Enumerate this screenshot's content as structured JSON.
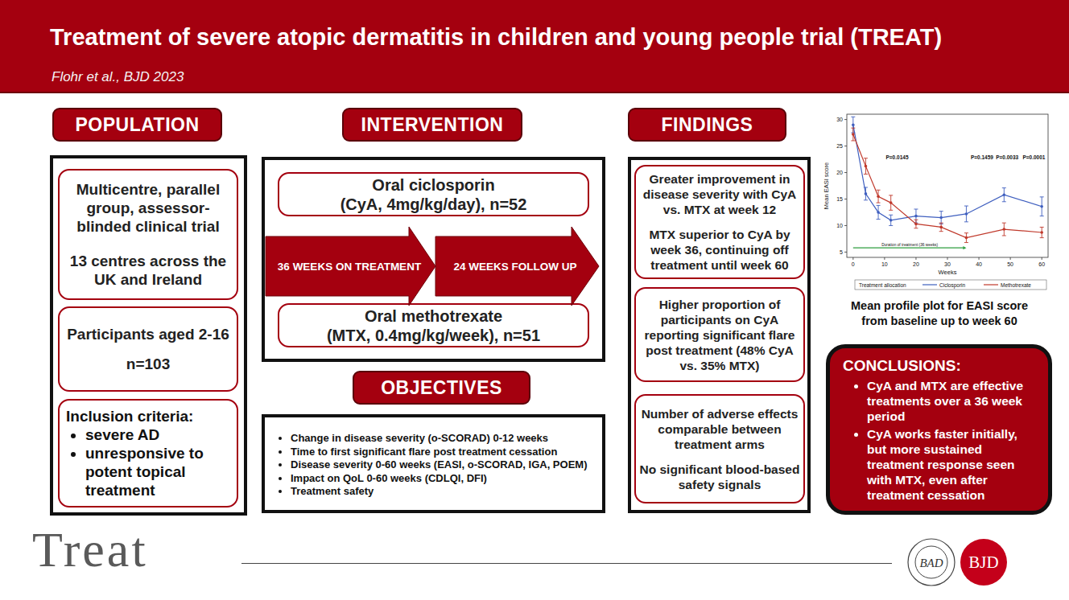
{
  "header": {
    "title": "Treatment of severe atopic dermatitis in children and young people trial (TREAT)",
    "subtitle": "Flohr et al., BJD 2023"
  },
  "population": {
    "heading": "POPULATION",
    "design": "Multicentre, parallel group, assessor-blinded clinical trial",
    "centres": "13 centres across the UK and Ireland",
    "participants": "Participants aged 2-16",
    "n": "n=103",
    "inclusion_title": "Inclusion criteria:",
    "inclusion_items": [
      "severe AD",
      "unresponsive to potent topical treatment"
    ]
  },
  "intervention": {
    "heading": "INTERVENTION",
    "arms": [
      {
        "drug": "Oral ciclosporin",
        "dose": "(CyA, 4mg/kg/day), n=52"
      },
      {
        "drug": "Oral methotrexate",
        "dose": "(MTX, 0.4mg/kg/week), n=51"
      }
    ],
    "phases": [
      "36 WEEKS ON TREATMENT",
      "24 WEEKS FOLLOW UP"
    ]
  },
  "objectives": {
    "heading": "OBJECTIVES",
    "items": [
      "Change in disease severity (o-SCORAD) 0-12 weeks",
      "Time to first significant flare post treatment cessation",
      "Disease severity 0-60 weeks (EASI, o-SCORAD, IGA, POEM)",
      "Impact on QoL 0-60 weeks (CDLQI, DFI)",
      "Treatment safety"
    ]
  },
  "findings": {
    "heading": "FINDINGS",
    "boxes": [
      [
        "Greater improvement in disease severity with CyA vs. MTX at week 12",
        "MTX superior to CyA by week 36, continuing off treatment until week 60"
      ],
      [
        "Higher proportion of participants on CyA reporting significant flare post treatment (48% CyA vs. 35% MTX)"
      ],
      [
        "Number of adverse effects comparable between treatment arms",
        "No significant blood-based safety signals"
      ]
    ]
  },
  "chart_data": {
    "type": "line",
    "x": [
      0,
      4,
      8,
      12,
      20,
      28,
      36,
      48,
      60
    ],
    "series": [
      {
        "name": "Ciclosporin",
        "color": "#3f5fbf",
        "marker": "circle",
        "values": [
          29,
          16,
          12.5,
          11,
          11.8,
          11.5,
          12.2,
          15.8,
          13.6
        ],
        "errors": [
          1.5,
          1.2,
          1.3,
          1,
          1.3,
          1.2,
          1.5,
          1.3,
          1.8
        ]
      },
      {
        "name": "Methotrexate",
        "color": "#c0392b",
        "marker": "circle",
        "values": [
          27.2,
          21.2,
          15.5,
          14.3,
          10.3,
          9.7,
          7.7,
          9.3,
          8.7
        ],
        "errors": [
          1.2,
          1.5,
          1.2,
          1.4,
          0.8,
          0.8,
          0.9,
          1.2,
          1
        ]
      }
    ],
    "xlabel": "Weeks",
    "ylabel": "Mean EASI score",
    "xlim": [
      -2,
      62
    ],
    "ylim": [
      4,
      31
    ],
    "xticks": [
      0,
      10,
      20,
      30,
      40,
      50,
      60
    ],
    "yticks": [
      5,
      10,
      15,
      20,
      25,
      30
    ],
    "grid": false,
    "legend": "bottom",
    "legend_title": "Treatment allocation",
    "annotations": [
      {
        "text": "P=0.0145",
        "x": 14,
        "y": 22.5
      },
      {
        "text": "P=0.1459",
        "x": 41,
        "y": 22.5
      },
      {
        "text": "P=0.0033",
        "x": 49,
        "y": 22.5
      },
      {
        "text": "P=0.0001",
        "x": 57.5,
        "y": 22.5
      }
    ],
    "duration": {
      "text": "Duration of treatment (36 weeks)",
      "x": 0,
      "x_end": 36,
      "y": 5.8,
      "color": "#2e9e3e"
    }
  },
  "chart_caption": "Mean profile plot for EASI score from baseline up to week 60",
  "conclusions": {
    "title": "CONCLUSIONS:",
    "items": [
      "CyA and MTX are effective treatments over a 36 week period",
      "CyA works faster initially, but more sustained treatment response seen with MTX, even after treatment cessation"
    ]
  },
  "footer": {
    "logo": "Treat",
    "seal": "BAD",
    "journal": "BJD"
  }
}
